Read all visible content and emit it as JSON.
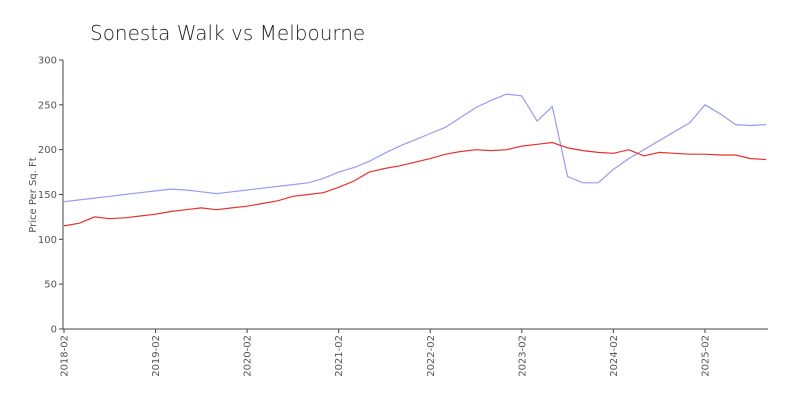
{
  "chart_data": {
    "type": "line",
    "title": "Sonesta Walk vs Melbourne",
    "y_label": "Price Per Sq. Ft",
    "categories": [
      "2018-02",
      null,
      null,
      null,
      null,
      null,
      "2019-02",
      null,
      null,
      null,
      null,
      null,
      "2020-02",
      null,
      null,
      null,
      null,
      null,
      "2021-02",
      null,
      null,
      null,
      null,
      null,
      "2022-02",
      null,
      null,
      null,
      null,
      null,
      "2023-02",
      null,
      null,
      null,
      null,
      null,
      "2024-02",
      null,
      null,
      null,
      null,
      null,
      "2025-02",
      null,
      null,
      null,
      null
    ],
    "series": [
      {
        "color": "#9b9bef",
        "values": [
          142,
          144,
          146,
          148,
          150,
          152,
          154,
          156,
          155,
          153,
          151,
          153,
          155,
          157,
          159,
          161,
          163,
          168,
          175,
          180,
          187,
          196,
          204,
          211,
          218,
          225,
          236,
          247,
          255,
          262,
          260,
          232,
          248,
          170,
          163,
          163,
          178,
          190,
          200,
          210,
          220,
          230,
          250,
          240,
          228,
          227,
          228
        ]
      },
      {
        "color": "#e8302c",
        "values": [
          115,
          118,
          125,
          123,
          124,
          126,
          128,
          131,
          133,
          135,
          133,
          135,
          137,
          140,
          143,
          148,
          150,
          152,
          158,
          165,
          175,
          179,
          182,
          186,
          190,
          195,
          198,
          200,
          199,
          200,
          204,
          206,
          208,
          202,
          199,
          197,
          196,
          200,
          193,
          197,
          196,
          195,
          195,
          194,
          194,
          190,
          189
        ]
      }
    ],
    "ylim": [
      0,
      300
    ],
    "yticks": [
      0,
      50,
      100,
      150,
      200,
      250,
      300
    ]
  }
}
